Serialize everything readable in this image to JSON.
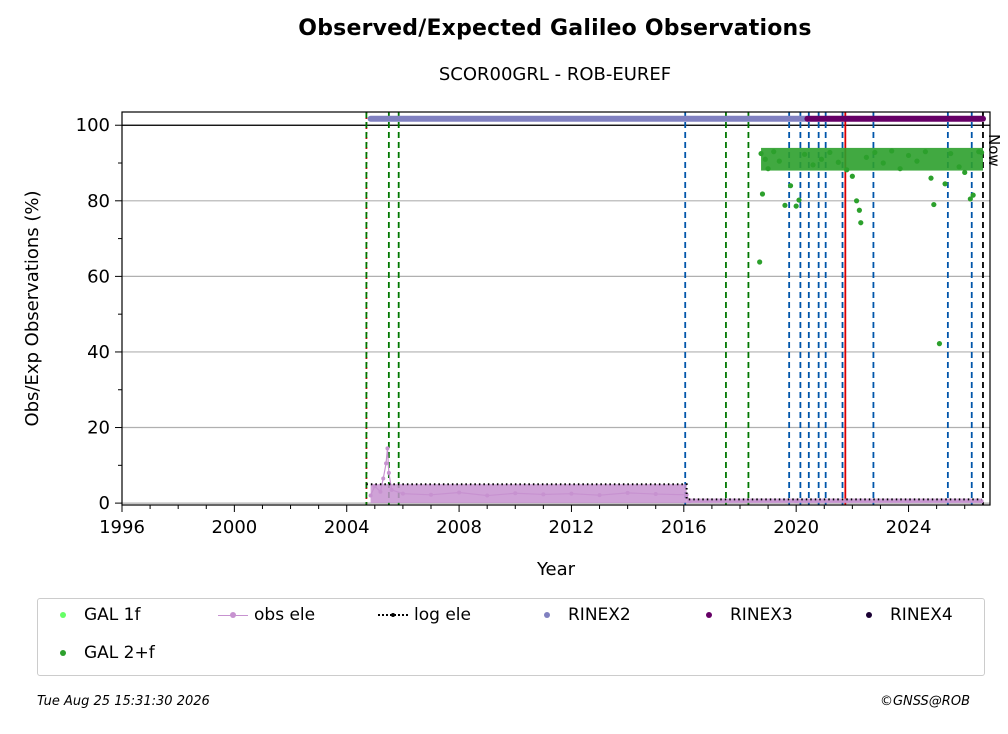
{
  "chart_data": {
    "type": "scatter",
    "title": "Observed/Expected Galileo Observations",
    "subtitle": "SCOR00GRL - ROB-EUREF",
    "xlabel": "Year",
    "ylabel": "Obs/Exp Observations (%)",
    "xlim": [
      1996,
      2026.9
    ],
    "ylim": [
      -0.5,
      103.5
    ],
    "x_ticks": [
      1996,
      2000,
      2004,
      2008,
      2012,
      2016,
      2020,
      2024
    ],
    "y_ticks": [
      0,
      20,
      40,
      60,
      80,
      100
    ],
    "grid": "y",
    "now_label": "Now",
    "now_x": 2026.65,
    "series": [
      {
        "name": "GAL 1f",
        "color": "#66ff66",
        "points": []
      },
      {
        "name": "GAL 2+f",
        "color": "#2ca02c",
        "points": [
          [
            2018.7,
            63.8
          ],
          [
            2018.75,
            92.5
          ],
          [
            2018.8,
            81.8
          ],
          [
            2018.9,
            91.0
          ],
          [
            2019.0,
            88.5
          ],
          [
            2019.2,
            93.0
          ],
          [
            2019.4,
            90.5
          ],
          [
            2019.6,
            78.8
          ],
          [
            2019.8,
            84.0
          ],
          [
            2020.0,
            78.6
          ],
          [
            2020.1,
            80.2
          ],
          [
            2020.3,
            92.3
          ],
          [
            2020.6,
            89.5
          ],
          [
            2020.9,
            91.0
          ],
          [
            2021.2,
            92.8
          ],
          [
            2021.5,
            90.2
          ],
          [
            2021.8,
            88.2
          ],
          [
            2022.0,
            86.5
          ],
          [
            2022.15,
            80.0
          ],
          [
            2022.25,
            77.5
          ],
          [
            2022.3,
            74.2
          ],
          [
            2022.5,
            91.5
          ],
          [
            2022.8,
            92.8
          ],
          [
            2023.1,
            90.0
          ],
          [
            2023.4,
            93.2
          ],
          [
            2023.7,
            88.5
          ],
          [
            2024.0,
            92.0
          ],
          [
            2024.3,
            90.5
          ],
          [
            2024.6,
            93.0
          ],
          [
            2024.8,
            86.0
          ],
          [
            2024.9,
            79.0
          ],
          [
            2025.1,
            42.2
          ],
          [
            2025.3,
            84.5
          ],
          [
            2025.5,
            92.5
          ],
          [
            2025.8,
            89.0
          ],
          [
            2026.0,
            87.5
          ],
          [
            2026.2,
            80.5
          ],
          [
            2026.3,
            81.5
          ],
          [
            2026.5,
            93.0
          ],
          [
            2026.6,
            92.8
          ]
        ]
      },
      {
        "name": "obs ele",
        "color": "#c792d0",
        "points": [
          [
            2004.85,
            2.0
          ],
          [
            2005.0,
            4.5
          ],
          [
            2005.2,
            3.0
          ],
          [
            2005.3,
            6.5
          ],
          [
            2005.4,
            10.5
          ],
          [
            2005.45,
            14.5
          ],
          [
            2005.5,
            8.0
          ],
          [
            2005.6,
            3.5
          ],
          [
            2006.0,
            2.5
          ],
          [
            2007.0,
            2.2
          ],
          [
            2008.0,
            2.8
          ],
          [
            2009.0,
            2.0
          ],
          [
            2010.0,
            2.6
          ],
          [
            2011.0,
            2.3
          ],
          [
            2012.0,
            2.5
          ],
          [
            2013.0,
            2.1
          ],
          [
            2014.0,
            2.7
          ],
          [
            2015.0,
            2.4
          ],
          [
            2016.1,
            2.2
          ],
          [
            2016.2,
            0.5
          ],
          [
            2020.0,
            0.5
          ],
          [
            2024.0,
            0.5
          ],
          [
            2026.6,
            0.5
          ]
        ]
      },
      {
        "name": "log ele",
        "color": "#000000",
        "points": [
          [
            2004.7,
            5.0
          ],
          [
            2016.1,
            5.0
          ],
          [
            2016.1,
            1.0
          ],
          [
            2026.6,
            1.0
          ]
        ]
      },
      {
        "name": "RINEX2",
        "color": "#8080c0",
        "range": [
          2004.85,
          2020.4
        ],
        "y": 101.7
      },
      {
        "name": "RINEX3",
        "color": "#660066",
        "range": [
          2020.4,
          2026.65
        ],
        "y": 101.7
      },
      {
        "name": "RINEX4",
        "color": "#1a0033",
        "range": null,
        "y": 101.7
      }
    ],
    "vlines": [
      {
        "x": 2004.7,
        "color": "#cc0000",
        "style": "dotted"
      },
      {
        "x": 2004.7,
        "color": "#007700",
        "style": "dashed"
      },
      {
        "x": 2005.5,
        "color": "#007700",
        "style": "dashed"
      },
      {
        "x": 2005.85,
        "color": "#007700",
        "style": "dashed"
      },
      {
        "x": 2016.05,
        "color": "#0055aa",
        "style": "dashed"
      },
      {
        "x": 2017.5,
        "color": "#007700",
        "style": "dashed"
      },
      {
        "x": 2018.3,
        "color": "#007700",
        "style": "dashed"
      },
      {
        "x": 2019.75,
        "color": "#0055aa",
        "style": "dashed"
      },
      {
        "x": 2020.15,
        "color": "#0055aa",
        "style": "dashed"
      },
      {
        "x": 2020.45,
        "color": "#0055aa",
        "style": "dashed"
      },
      {
        "x": 2020.8,
        "color": "#0055aa",
        "style": "dashed"
      },
      {
        "x": 2021.05,
        "color": "#0055aa",
        "style": "dashed"
      },
      {
        "x": 2021.65,
        "color": "#0055aa",
        "style": "dashed"
      },
      {
        "x": 2021.75,
        "color": "#dd0000",
        "style": "solid"
      },
      {
        "x": 2022.75,
        "color": "#0055aa",
        "style": "dashed"
      },
      {
        "x": 2025.4,
        "color": "#0055aa",
        "style": "dashed"
      },
      {
        "x": 2026.25,
        "color": "#0055aa",
        "style": "dashed"
      },
      {
        "x": 2026.65,
        "color": "#000000",
        "style": "dashed"
      }
    ]
  },
  "footer": {
    "timestamp": "Tue Aug 25 15:31:30 2026",
    "copyright": "©GNSS@ROB"
  }
}
